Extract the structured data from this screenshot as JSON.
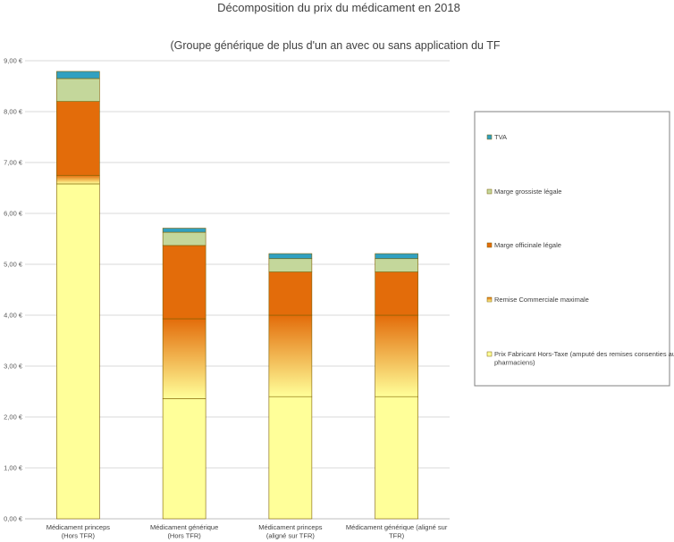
{
  "chart_data": {
    "type": "bar",
    "stacked": true,
    "title": "Décomposition du prix du médicament en 2018",
    "subtitle": "(Groupe générique de plus d'un an avec ou sans application du TF",
    "xlabel": "",
    "ylabel": "",
    "ylim": [
      0,
      9
    ],
    "yticks": [
      "0,00 €",
      "1,00 €",
      "2,00 €",
      "3,00 €",
      "4,00 €",
      "5,00 €",
      "6,00 €",
      "7,00 €",
      "8,00 €",
      "9,00 €"
    ],
    "grid": true,
    "legend_position": "right",
    "categories": [
      [
        "Médicament princeps",
        "(Hors TFR)"
      ],
      [
        "Médicament générique",
        "(Hors TFR)"
      ],
      [
        "Médicament princeps",
        "(aligné sur TFR)"
      ],
      [
        "Médicament générique (aligné sur",
        "TFR)"
      ]
    ],
    "series": [
      {
        "name": "Prix Fabricant Hors-Taxe (amputé des remises consenties aux pharmaciens)",
        "values": [
          6.58,
          2.36,
          2.4,
          2.4
        ],
        "color": "#ffff99"
      },
      {
        "name": "Remise Commerciale maximale",
        "values": [
          0.17,
          1.57,
          1.6,
          1.6
        ],
        "color": "#f4a23a"
      },
      {
        "name": "Marge officinale légale",
        "values": [
          1.45,
          1.44,
          0.85,
          0.85
        ],
        "color": "#e36c0a"
      },
      {
        "name": "Marge grossiste légale",
        "values": [
          0.45,
          0.26,
          0.26,
          0.26
        ],
        "color": "#c4d79b"
      },
      {
        "name": "TVA",
        "values": [
          0.14,
          0.08,
          0.1,
          0.1
        ],
        "color": "#31a0c0"
      }
    ],
    "legend_order": [
      "TVA",
      "Marge grossiste légale",
      "Marge officinale légale",
      "Remise Commerciale maximale",
      "Prix Fabricant Hors-Taxe (amputé des remises consenties aux pharmaciens)"
    ]
  }
}
